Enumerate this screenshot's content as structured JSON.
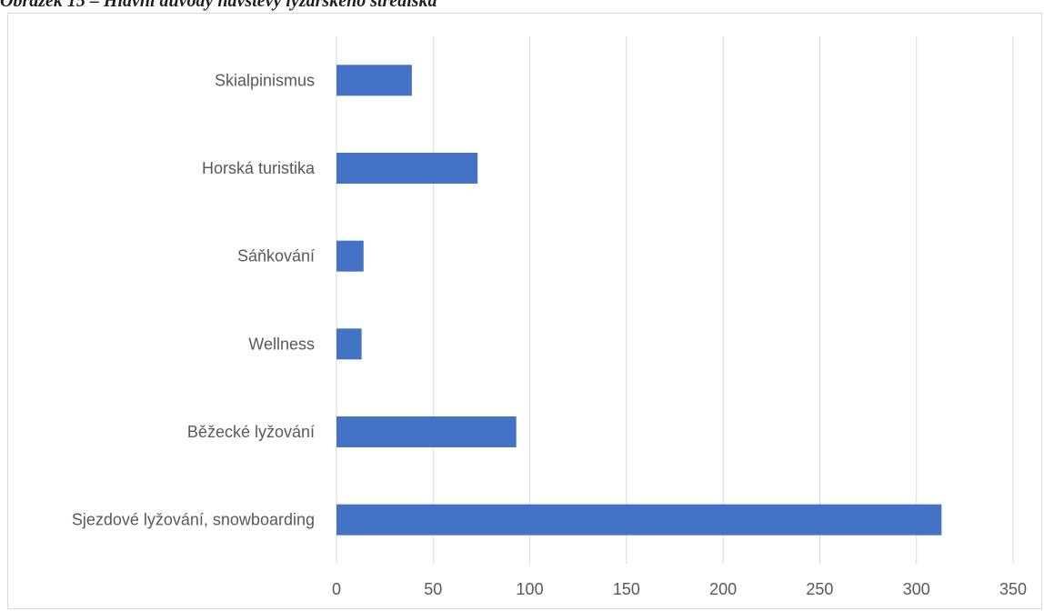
{
  "caption": "Obrázek 15 – Hlavní důvody návštěvy lyžařského střediska",
  "colors": {
    "bar": "#4472c4",
    "grid": "#d9d9d9",
    "text": "#595959"
  },
  "chart_data": {
    "type": "bar",
    "orientation": "horizontal",
    "title": "",
    "xlabel": "",
    "ylabel": "",
    "categories": [
      "Sjezdové lyžování, snowboarding",
      "Běžecké lyžování",
      "Wellness",
      "Sáňkování",
      "Horská turistika",
      "Skialpinismus"
    ],
    "values": [
      313,
      93,
      13,
      14,
      73,
      39
    ],
    "xlim": [
      0,
      350
    ],
    "xticks": [
      0,
      50,
      100,
      150,
      200,
      250,
      300,
      350
    ],
    "grid": true,
    "legend": "none"
  }
}
